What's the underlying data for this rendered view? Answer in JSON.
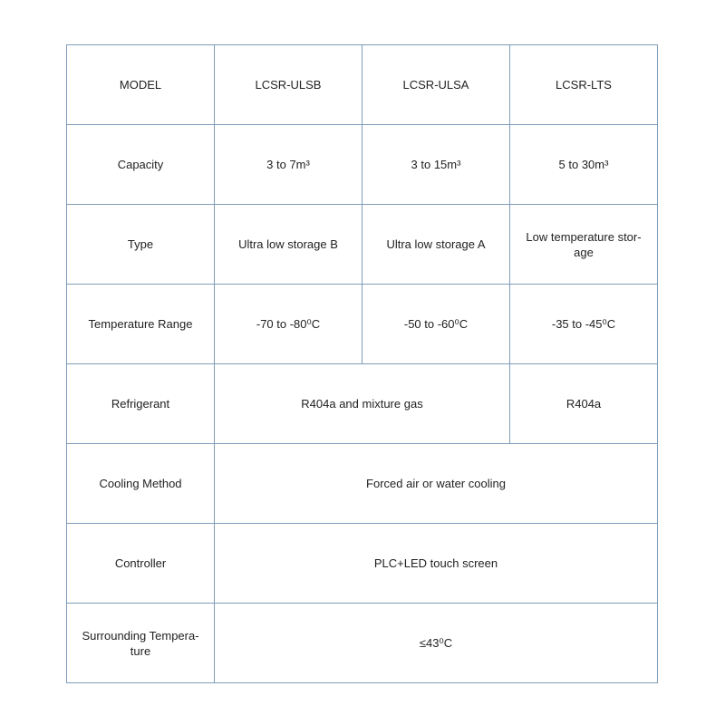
{
  "rows": [
    {
      "label": "MODEL",
      "cells": [
        "LCSR-ULSB",
        "LCSR-ULSA",
        "LCSR-LTS"
      ]
    },
    {
      "label": "Capacity",
      "cells": [
        "3 to 7m³",
        "3 to 15m³",
        "5 to 30m³"
      ]
    },
    {
      "label": "Type",
      "cells": [
        "Ultra low storage  B",
        "Ultra low storage  A",
        "Low temperature stor-age"
      ]
    },
    {
      "label": "Temperature Range",
      "cells": [
        "-70 to -80⁰C",
        "-50 to -60⁰C",
        "-35 to -45⁰C"
      ]
    },
    {
      "label": "Refrigerant",
      "cells": [
        "R404a and mixture gas",
        "R404a"
      ]
    },
    {
      "label": "Cooling Method",
      "cells": [
        "Forced air or water cooling"
      ]
    },
    {
      "label": "Controller",
      "cells": [
        "PLC+LED touch screen"
      ]
    },
    {
      "label": "Surrounding Tempera-ture",
      "cells": [
        "≤43⁰C"
      ]
    }
  ]
}
